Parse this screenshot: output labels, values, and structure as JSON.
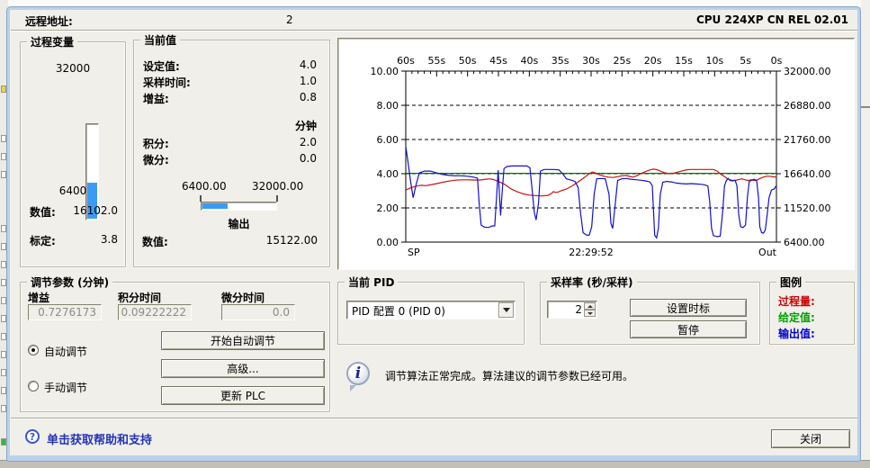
{
  "header": {
    "remote_address_label": "远程地址:",
    "remote_address_value": "2",
    "cpu_info": "CPU 224XP CN REL 02.01"
  },
  "process_variable": {
    "title": "过程变量",
    "max_label": "32000",
    "min_label": "6400",
    "value_label": "数值:",
    "value": "16102.0",
    "scale_label": "标定:",
    "scale_value": "3.8",
    "range_min": 6400,
    "range_max": 32000
  },
  "current_values": {
    "title": "当前值",
    "setpoint_label": "设定值:",
    "setpoint": "4.0",
    "sample_time_label": "采样时间:",
    "sample_time": "1.0",
    "gain_label": "增益:",
    "gain": "0.8",
    "minutes_label": "分钟",
    "integral_label": "积分:",
    "integral": "2.0",
    "derivative_label": "微分:",
    "derivative": "0.0",
    "output": {
      "min_label": "6400.00",
      "max_label": "32000.00",
      "label": "输出",
      "value_label": "数值:",
      "value": "15122.00",
      "range_min": 6400,
      "range_max": 32000
    }
  },
  "tuning": {
    "title": "调节参数 (分钟)",
    "gain_label": "增益",
    "gain": "0.7276173",
    "integral_time_label": "积分时间",
    "integral_time": "0.09222222",
    "derivative_time_label": "微分时间",
    "derivative_time": "0.0",
    "auto_label": "自动调节",
    "manual_label": "手动调节",
    "auto_selected": true,
    "buttons": {
      "start": "开始自动调节",
      "advanced": "高级...",
      "update": "更新 PLC"
    }
  },
  "current_pid": {
    "title": "当前 PID",
    "selected_option": "PID 配置 0 (PID 0)"
  },
  "sample_rate": {
    "title": "采样率 (秒/采样)",
    "value": "2",
    "set_time_label": "设置时标",
    "pause_label": "暂停"
  },
  "legend": {
    "title": "图例",
    "items": [
      {
        "label": "过程量:",
        "color": "#cc0000"
      },
      {
        "label": "给定值:",
        "color": "#00a000"
      },
      {
        "label": "输出值:",
        "color": "#0000cc"
      }
    ]
  },
  "status_message": "调节算法正常完成。算法建议的调节参数已经可用。",
  "help_bar": {
    "help_text": "单击获取帮助和支持",
    "close_label": "关闭"
  },
  "chart_data": {
    "type": "line",
    "x_unit": "s",
    "x_range": [
      60,
      0
    ],
    "top_tick_labels": [
      "60s",
      "55s",
      "50s",
      "45s",
      "40s",
      "35s",
      "30s",
      "25s",
      "20s",
      "15s",
      "10s",
      "5s",
      "0s"
    ],
    "left_axis": {
      "min": 0,
      "max": 10,
      "tick_values": [
        10,
        8,
        6,
        4,
        2,
        0
      ],
      "tick_labels": [
        "10.00",
        "8.00",
        "6.00",
        "4.00",
        "2.00",
        "0.00"
      ]
    },
    "right_axis": {
      "min": 6400,
      "max": 32000,
      "tick_labels": [
        "32000.00",
        "26880.00",
        "21760.00",
        "16640.00",
        "11520.00",
        "6400.00"
      ]
    },
    "grid_values": [
      8,
      6,
      4,
      2
    ],
    "bottom_left_label": "SP",
    "bottom_center_label": "22:29:52",
    "bottom_right_label": "Out",
    "series": [
      {
        "name": "setpoint",
        "legend": "给定值",
        "color": "#007700",
        "points": [
          [
            60,
            4.02
          ],
          [
            0,
            4.02
          ]
        ]
      },
      {
        "name": "process-value",
        "legend": "过程量",
        "color": "#cc1111",
        "points": [
          [
            60,
            3.05
          ],
          [
            59,
            3.2
          ],
          [
            58,
            3.3
          ],
          [
            57.4,
            3.32
          ],
          [
            56.8,
            3.3
          ],
          [
            56,
            3.35
          ],
          [
            55,
            3.42
          ],
          [
            54,
            3.5
          ],
          [
            53,
            3.57
          ],
          [
            52,
            3.62
          ],
          [
            51,
            3.64
          ],
          [
            50,
            3.64
          ],
          [
            49,
            3.63
          ],
          [
            48,
            3.63
          ],
          [
            47,
            3.68
          ],
          [
            46.4,
            3.7
          ],
          [
            45.8,
            3.66
          ],
          [
            45,
            3.55
          ],
          [
            44,
            3.38
          ],
          [
            43,
            3.12
          ],
          [
            42,
            2.95
          ],
          [
            41,
            2.82
          ],
          [
            40,
            2.75
          ],
          [
            39,
            2.72
          ],
          [
            38,
            2.7
          ],
          [
            37,
            2.73
          ],
          [
            36.5,
            2.82
          ],
          [
            36.1,
            2.95
          ],
          [
            35.7,
            2.9
          ],
          [
            35.3,
            2.93
          ],
          [
            34.9,
            3.0
          ],
          [
            34,
            3.1
          ],
          [
            33,
            3.3
          ],
          [
            32,
            3.55
          ],
          [
            31,
            3.8
          ],
          [
            30.3,
            4.0
          ],
          [
            29.8,
            4.1
          ],
          [
            29.2,
            4.03
          ],
          [
            28.6,
            3.93
          ],
          [
            28,
            3.86
          ],
          [
            27.2,
            3.8
          ],
          [
            26.4,
            3.78
          ],
          [
            25.6,
            3.83
          ],
          [
            25,
            3.88
          ],
          [
            24.4,
            3.9
          ],
          [
            23.8,
            3.84
          ],
          [
            23.2,
            3.8
          ],
          [
            22.6,
            3.88
          ],
          [
            22,
            4.0
          ],
          [
            21.2,
            4.12
          ],
          [
            20.5,
            4.22
          ],
          [
            19.9,
            4.27
          ],
          [
            19.3,
            4.23
          ],
          [
            18.6,
            4.12
          ],
          [
            18,
            4.05
          ],
          [
            17.3,
            4.0
          ],
          [
            16.6,
            4.03
          ],
          [
            15.9,
            4.1
          ],
          [
            15.2,
            4.17
          ],
          [
            14.5,
            4.23
          ],
          [
            13.9,
            4.25
          ],
          [
            13,
            4.25
          ],
          [
            12,
            4.25
          ],
          [
            11,
            4.25
          ],
          [
            10.2,
            4.25
          ],
          [
            9.6,
            4.15
          ],
          [
            9.1,
            4.0
          ],
          [
            8.5,
            3.85
          ],
          [
            7.9,
            3.7
          ],
          [
            7.3,
            3.62
          ],
          [
            6.7,
            3.6
          ],
          [
            6.1,
            3.66
          ],
          [
            5.6,
            3.7
          ],
          [
            5.1,
            3.65
          ],
          [
            4.6,
            3.6
          ],
          [
            4.1,
            3.65
          ],
          [
            3.6,
            3.6
          ],
          [
            3.1,
            3.63
          ],
          [
            2.6,
            3.73
          ],
          [
            2.1,
            3.8
          ],
          [
            1.6,
            3.85
          ],
          [
            1.1,
            3.85
          ],
          [
            0.6,
            3.82
          ],
          [
            0,
            3.8
          ]
        ]
      },
      {
        "name": "output-value",
        "legend": "输出值",
        "color": "#1111cc",
        "points": [
          [
            60,
            5.6
          ],
          [
            59.6,
            4.6
          ],
          [
            59.2,
            3.5
          ],
          [
            58.8,
            2.6
          ],
          [
            58.3,
            3.4
          ],
          [
            57.8,
            4.05
          ],
          [
            57,
            4.15
          ],
          [
            56,
            4.15
          ],
          [
            55,
            4.05
          ],
          [
            54,
            3.95
          ],
          [
            53,
            3.9
          ],
          [
            52,
            3.88
          ],
          [
            51,
            3.88
          ],
          [
            50,
            3.85
          ],
          [
            49,
            3.8
          ],
          [
            48.4,
            3.75
          ],
          [
            48.1,
            2.2
          ],
          [
            47.8,
            1.0
          ],
          [
            47.3,
            0.88
          ],
          [
            46.6,
            0.85
          ],
          [
            46,
            0.95
          ],
          [
            45.6,
            0.95
          ],
          [
            45.3,
            2.6
          ],
          [
            45.05,
            4.2
          ],
          [
            44.85,
            2.9
          ],
          [
            44.65,
            1.55
          ],
          [
            44.4,
            2.9
          ],
          [
            44.1,
            4.3
          ],
          [
            43.6,
            4.42
          ],
          [
            42.8,
            4.45
          ],
          [
            42,
            4.45
          ],
          [
            41.2,
            4.45
          ],
          [
            40.4,
            4.45
          ],
          [
            39.9,
            4.35
          ],
          [
            39.5,
            2.9
          ],
          [
            39.2,
            1.75
          ],
          [
            38.9,
            1.3
          ],
          [
            38.5,
            2.3
          ],
          [
            38.2,
            4.15
          ],
          [
            37.6,
            4.25
          ],
          [
            36.8,
            4.25
          ],
          [
            36,
            4.25
          ],
          [
            35.2,
            4.22
          ],
          [
            34.6,
            4.0
          ],
          [
            34,
            3.7
          ],
          [
            33.2,
            3.62
          ],
          [
            32.6,
            3.55
          ],
          [
            32.1,
            3.2
          ],
          [
            31.7,
            1.7
          ],
          [
            31.3,
            0.55
          ],
          [
            30.8,
            0.42
          ],
          [
            30.3,
            0.4
          ],
          [
            29.9,
            0.9
          ],
          [
            29.5,
            2.8
          ],
          [
            29.1,
            3.7
          ],
          [
            28.4,
            3.72
          ],
          [
            27.7,
            3.7
          ],
          [
            27.1,
            2.8
          ],
          [
            26.8,
            1.1
          ],
          [
            26.5,
            0.8
          ],
          [
            26.1,
            2.2
          ],
          [
            25.7,
            3.6
          ],
          [
            25,
            3.7
          ],
          [
            24.3,
            3.72
          ],
          [
            23.6,
            3.68
          ],
          [
            22.8,
            3.65
          ],
          [
            22,
            3.62
          ],
          [
            21.2,
            3.58
          ],
          [
            20.5,
            3.52
          ],
          [
            20.1,
            3.3
          ],
          [
            19.9,
            1.8
          ],
          [
            19.7,
            0.4
          ],
          [
            19.4,
            0.25
          ],
          [
            19.1,
            0.8
          ],
          [
            18.8,
            2.8
          ],
          [
            18.4,
            3.5
          ],
          [
            17.8,
            3.55
          ],
          [
            17,
            3.52
          ],
          [
            16.2,
            3.45
          ],
          [
            15.4,
            3.42
          ],
          [
            14.6,
            3.4
          ],
          [
            13.8,
            3.42
          ],
          [
            13,
            3.4
          ],
          [
            12.2,
            3.38
          ],
          [
            11.6,
            3.35
          ],
          [
            11.1,
            3.28
          ],
          [
            10.8,
            2.4
          ],
          [
            10.5,
            0.8
          ],
          [
            10.2,
            0.38
          ],
          [
            9.6,
            0.32
          ],
          [
            9.1,
            0.35
          ],
          [
            8.7,
            1.8
          ],
          [
            8.4,
            3.3
          ],
          [
            8.1,
            3.6
          ],
          [
            7.8,
            3.72
          ],
          [
            7.5,
            3.6
          ],
          [
            7.1,
            3.58
          ],
          [
            6.7,
            3.62
          ],
          [
            6.4,
            3.3
          ],
          [
            6.1,
            1.6
          ],
          [
            5.8,
            0.9
          ],
          [
            5.4,
            0.85
          ],
          [
            5,
            1.0
          ],
          [
            4.7,
            2.6
          ],
          [
            4.4,
            3.55
          ],
          [
            4,
            3.62
          ],
          [
            3.6,
            3.68
          ],
          [
            3.2,
            3.6
          ],
          [
            2.9,
            2.6
          ],
          [
            2.7,
            0.9
          ],
          [
            2.4,
            0.55
          ],
          [
            2.1,
            0.52
          ],
          [
            1.8,
            0.7
          ],
          [
            1.5,
            1.6
          ],
          [
            1.2,
            2.6
          ],
          [
            0.8,
            3.05
          ],
          [
            0.4,
            3.1
          ],
          [
            0,
            3.3
          ]
        ]
      }
    ]
  }
}
